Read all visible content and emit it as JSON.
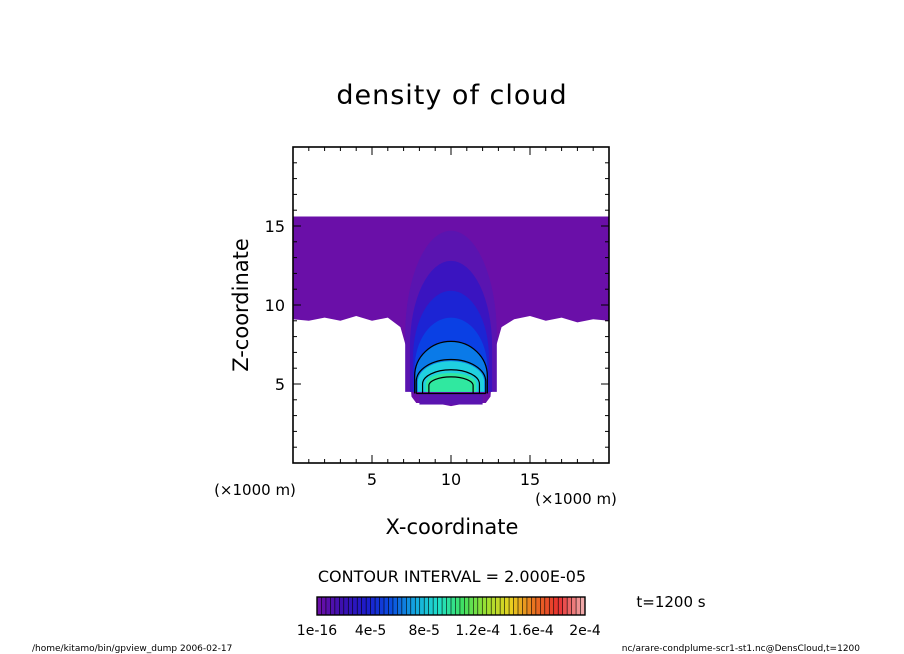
{
  "chart_data": {
    "type": "contour",
    "title": "density of cloud",
    "xlabel": "X-coordinate",
    "ylabel": "Z-coordinate",
    "x_unit": "(×1000 m)",
    "y_unit": "(×1000 m)",
    "xlim": [
      0,
      20
    ],
    "ylim": [
      0,
      20
    ],
    "x_ticks": [
      5,
      10,
      15
    ],
    "y_ticks": [
      5,
      10,
      15
    ],
    "contour_interval_text": "CONTOUR INTERVAL = 2.000E-05",
    "time_label": "t=1200 s",
    "colorbar": {
      "range": [
        1e-16,
        0.0002
      ],
      "tick_labels": [
        "1e-16",
        "4e-5",
        "8e-5",
        "1.2e-4",
        "1.6e-4",
        "2e-4"
      ],
      "colors": [
        "#6a0fa8",
        "#3a10b0",
        "#1c1ccc",
        "#0a4ee0",
        "#14a8e0",
        "#20e0c8",
        "#40e060",
        "#a0e030",
        "#e8d020",
        "#e87020",
        "#e83030",
        "#f0a8a8"
      ]
    },
    "regions": [
      {
        "name": "cloud-layer-upper",
        "z_range": [
          9.0,
          15.6
        ],
        "x_range": [
          0,
          20
        ],
        "level": 1e-16,
        "color": "#6a0fa8"
      },
      {
        "name": "plume-stem",
        "x_range": [
          7.6,
          12.6
        ],
        "z_range": [
          3.8,
          9.0
        ],
        "level": 1e-16,
        "color": "#6a0fa8"
      },
      {
        "name": "plume-core",
        "center": [
          10,
          5.0
        ],
        "max_level": 0.00012,
        "colors": [
          "#5a14b0",
          "#3a14c0",
          "#1c24d4",
          "#0a40e4",
          "#0a7ae8",
          "#20d0e0",
          "#30e8a0"
        ]
      }
    ]
  },
  "footer": {
    "left": "/home/kitamo/bin/gpview_dump  2006-02-17",
    "right": "nc/arare-condplume-scr1-st1.nc@DensCloud,t=1200"
  }
}
